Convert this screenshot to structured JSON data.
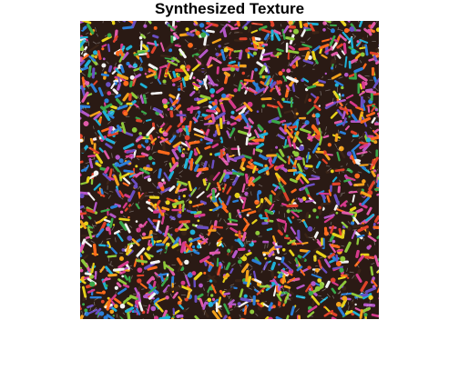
{
  "figure": {
    "title": "Synthesized Texture"
  },
  "image": {
    "subject": "colorful-sprinkles-texture",
    "palette": [
      "#e8d21a",
      "#f4a21c",
      "#e0432a",
      "#d63a8c",
      "#b458c8",
      "#6b4fc2",
      "#2b7fd8",
      "#1fb0d6",
      "#3aa84a",
      "#8fc93a",
      "#f2f2f2",
      "#3a2418",
      "#ff6a1c",
      "#e05aa8"
    ],
    "background_color": "#2a1a14"
  }
}
